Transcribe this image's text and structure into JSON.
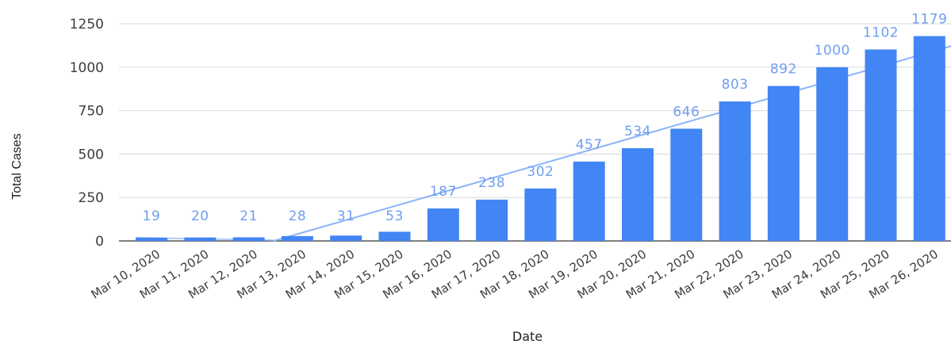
{
  "chart_data": {
    "type": "bar",
    "title": "",
    "xlabel": "Date",
    "ylabel": "Total Cases",
    "categories": [
      "Mar 10, 2020",
      "Mar 11, 2020",
      "Mar 12, 2020",
      "Mar 13, 2020",
      "Mar 14, 2020",
      "Mar 15, 2020",
      "Mar 16, 2020",
      "Mar 17, 2020",
      "Mar 18, 2020",
      "Mar 19, 2020",
      "Mar 20, 2020",
      "Mar 21, 2020",
      "Mar 22, 2020",
      "Mar 23, 2020",
      "Mar 24, 2020",
      "Mar 25, 2020",
      "Mar 26, 2020"
    ],
    "values": [
      19,
      20,
      21,
      28,
      31,
      53,
      187,
      238,
      302,
      457,
      534,
      646,
      803,
      892,
      1000,
      1102,
      1179
    ],
    "ylim": [
      0,
      1250
    ],
    "yticks": [
      0,
      250,
      500,
      750,
      1000,
      1250
    ],
    "grid": true,
    "trendline": true,
    "colors": {
      "bar": "#4285f4",
      "data_label": "#6f9ef0",
      "trendline": "#8ab4f8",
      "grid": "#d9d9d9"
    }
  }
}
